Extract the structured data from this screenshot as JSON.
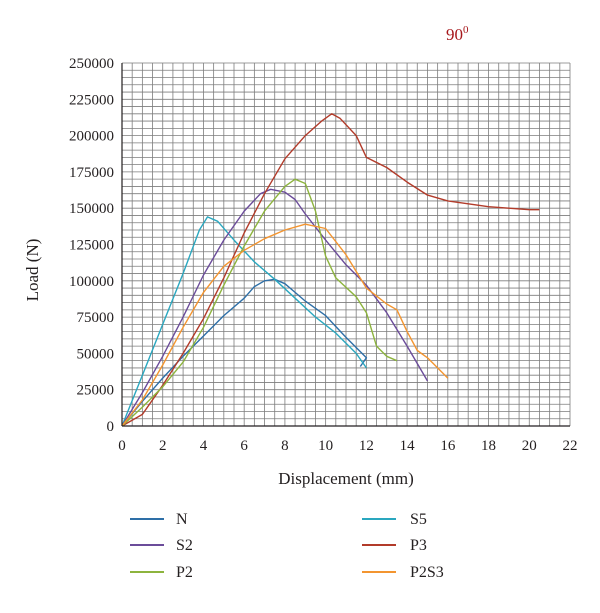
{
  "chart_data": {
    "type": "line",
    "title": "",
    "annotation": {
      "base": "90",
      "superscript": "0",
      "color": "#a6171b"
    },
    "xlabel": "Displacement (mm)",
    "ylabel": "Load (N)",
    "xlim": [
      0,
      22
    ],
    "ylim": [
      0,
      250000
    ],
    "xticks": [
      0,
      2,
      4,
      6,
      8,
      10,
      12,
      14,
      16,
      18,
      20,
      22
    ],
    "yticks": [
      0,
      25000,
      50000,
      75000,
      100000,
      125000,
      150000,
      175000,
      200000,
      225000,
      250000
    ],
    "grid": true,
    "legend_position": "bottom",
    "series": [
      {
        "name": "N",
        "color": "#2e6fa7",
        "points": [
          [
            0,
            0
          ],
          [
            1,
            17000
          ],
          [
            2,
            33000
          ],
          [
            3,
            48000
          ],
          [
            4,
            62000
          ],
          [
            5,
            76000
          ],
          [
            6,
            88000
          ],
          [
            6.5,
            96000
          ],
          [
            7,
            100000
          ],
          [
            7.5,
            101000
          ],
          [
            8,
            98000
          ],
          [
            8.5,
            92000
          ],
          [
            9,
            86000
          ],
          [
            10,
            76000
          ],
          [
            11,
            61000
          ],
          [
            12,
            47000
          ],
          [
            11.7,
            41000
          ]
        ]
      },
      {
        "name": "S5",
        "color": "#2aa7bf",
        "points": [
          [
            0,
            0
          ],
          [
            1,
            35000
          ],
          [
            2,
            70000
          ],
          [
            3,
            105000
          ],
          [
            3.8,
            135000
          ],
          [
            4.2,
            144000
          ],
          [
            4.7,
            141000
          ],
          [
            5.5,
            128000
          ],
          [
            6.5,
            113000
          ],
          [
            7.5,
            101000
          ],
          [
            8.5,
            88000
          ],
          [
            9.5,
            75000
          ],
          [
            10.5,
            64000
          ],
          [
            11.5,
            50000
          ],
          [
            12,
            40000
          ]
        ]
      },
      {
        "name": "S2",
        "color": "#6b4c9a",
        "points": [
          [
            0,
            0
          ],
          [
            1,
            23000
          ],
          [
            2,
            48000
          ],
          [
            3,
            75000
          ],
          [
            4,
            104000
          ],
          [
            5,
            128000
          ],
          [
            6,
            148000
          ],
          [
            6.8,
            160000
          ],
          [
            7.3,
            163000
          ],
          [
            8,
            161000
          ],
          [
            8.5,
            156000
          ],
          [
            9,
            146000
          ],
          [
            10,
            128000
          ],
          [
            11,
            111000
          ],
          [
            12,
            97000
          ],
          [
            13,
            78000
          ],
          [
            14,
            55000
          ],
          [
            15,
            31000
          ]
        ]
      },
      {
        "name": "P3",
        "color": "#b23b2a",
        "points": [
          [
            0,
            0
          ],
          [
            1,
            8000
          ],
          [
            2,
            28000
          ],
          [
            3,
            50000
          ],
          [
            4,
            74000
          ],
          [
            5,
            102000
          ],
          [
            6,
            133000
          ],
          [
            7,
            160000
          ],
          [
            8,
            184000
          ],
          [
            9,
            200000
          ],
          [
            9.8,
            210000
          ],
          [
            10.3,
            215000
          ],
          [
            10.7,
            212000
          ],
          [
            11.5,
            200000
          ],
          [
            12,
            185000
          ],
          [
            13,
            178000
          ],
          [
            14,
            168000
          ],
          [
            15,
            159000
          ],
          [
            16,
            155000
          ],
          [
            17,
            153000
          ],
          [
            18,
            151000
          ],
          [
            19,
            150000
          ],
          [
            20,
            149000
          ],
          [
            20.5,
            149000
          ]
        ]
      },
      {
        "name": "P2",
        "color": "#8db43e",
        "points": [
          [
            0,
            0
          ],
          [
            1,
            13000
          ],
          [
            2,
            27000
          ],
          [
            3,
            44000
          ],
          [
            4,
            68000
          ],
          [
            5,
            97000
          ],
          [
            6,
            124000
          ],
          [
            7,
            148000
          ],
          [
            8,
            165000
          ],
          [
            8.5,
            170000
          ],
          [
            9,
            167000
          ],
          [
            9.5,
            148000
          ],
          [
            10,
            117000
          ],
          [
            10.5,
            102000
          ],
          [
            11.5,
            89000
          ],
          [
            12,
            78000
          ],
          [
            12.5,
            55000
          ],
          [
            13,
            48000
          ],
          [
            13.5,
            45000
          ]
        ]
      },
      {
        "name": "P2S3",
        "color": "#f39530",
        "points": [
          [
            0,
            0
          ],
          [
            1,
            18000
          ],
          [
            2,
            42000
          ],
          [
            3,
            68000
          ],
          [
            4,
            92000
          ],
          [
            5,
            110000
          ],
          [
            6,
            121000
          ],
          [
            7,
            129000
          ],
          [
            8,
            135000
          ],
          [
            9,
            139000
          ],
          [
            10,
            136000
          ],
          [
            11,
            118000
          ],
          [
            12,
            95000
          ],
          [
            13,
            84000
          ],
          [
            13.5,
            80000
          ],
          [
            14,
            65000
          ],
          [
            14.5,
            52000
          ],
          [
            15,
            47000
          ],
          [
            15.5,
            40000
          ],
          [
            16,
            33000
          ]
        ]
      }
    ]
  }
}
